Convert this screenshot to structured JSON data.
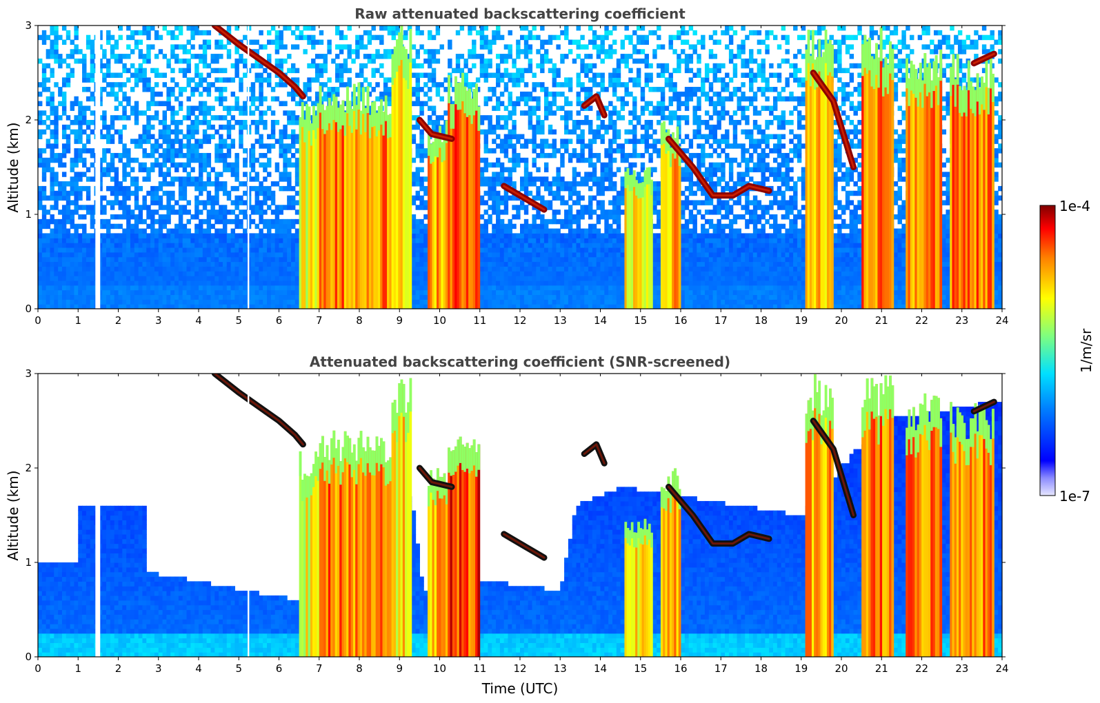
{
  "chart_data": [
    {
      "type": "heatmap",
      "title": "Raw attenuated backscattering coefficient",
      "xlabel": "",
      "ylabel": "Altitude (km)",
      "xlim": [
        0,
        24
      ],
      "ylim": [
        0,
        3
      ],
      "x_ticks": [
        "0",
        "1",
        "2",
        "3",
        "4",
        "5",
        "6",
        "7",
        "8",
        "9",
        "10",
        "11",
        "12",
        "13",
        "14",
        "15",
        "16",
        "17",
        "18",
        "19",
        "20",
        "21",
        "22",
        "23",
        "24"
      ],
      "y_ticks": [
        "0",
        "1",
        "2",
        "3"
      ],
      "grid": false,
      "colormap": "jet",
      "snr_screened": false,
      "cloud_layers": [
        {
          "x": [
            4.4,
            5.0,
            5.5,
            6.0,
            6.4,
            6.6
          ],
          "y": [
            3.0,
            2.8,
            2.65,
            2.5,
            2.35,
            2.25
          ]
        },
        {
          "x": [
            9.5,
            9.8,
            10.3
          ],
          "y": [
            2.0,
            1.85,
            1.8
          ]
        },
        {
          "x": [
            11.6,
            12.0,
            12.6
          ],
          "y": [
            1.3,
            1.2,
            1.05
          ]
        },
        {
          "x": [
            13.6,
            13.9,
            14.1
          ],
          "y": [
            2.15,
            2.25,
            2.05
          ]
        },
        {
          "x": [
            15.7,
            16.3,
            16.8,
            17.3,
            17.7,
            18.2
          ],
          "y": [
            1.8,
            1.5,
            1.2,
            1.2,
            1.3,
            1.25
          ]
        },
        {
          "x": [
            19.3,
            19.8,
            20.3
          ],
          "y": [
            2.5,
            2.2,
            1.5
          ]
        },
        {
          "x": [
            23.3,
            23.8
          ],
          "y": [
            2.6,
            2.7
          ]
        }
      ],
      "aerosol_columns": [
        {
          "x0": 6.5,
          "x1": 7.0,
          "top": 2.2,
          "level": 0.7
        },
        {
          "x0": 7.0,
          "x1": 8.8,
          "top": 2.4,
          "level": 0.85
        },
        {
          "x0": 8.8,
          "x1": 9.3,
          "top": 3.0,
          "level": 0.75
        },
        {
          "x0": 9.7,
          "x1": 10.2,
          "top": 2.0,
          "level": 0.8
        },
        {
          "x0": 10.2,
          "x1": 11.0,
          "top": 2.5,
          "level": 0.9
        },
        {
          "x0": 14.6,
          "x1": 15.3,
          "top": 1.5,
          "level": 0.75
        },
        {
          "x0": 15.5,
          "x1": 16.0,
          "top": 2.0,
          "level": 0.8
        },
        {
          "x0": 19.1,
          "x1": 19.8,
          "top": 3.0,
          "level": 0.8
        },
        {
          "x0": 20.5,
          "x1": 21.3,
          "top": 3.0,
          "level": 0.85
        },
        {
          "x0": 21.6,
          "x1": 22.5,
          "top": 2.8,
          "level": 0.85
        },
        {
          "x0": 22.7,
          "x1": 23.8,
          "top": 2.7,
          "level": 0.85
        }
      ],
      "gaps": [
        {
          "x0": 1.43,
          "x1": 1.55
        },
        {
          "x0": 5.22,
          "x1": 5.26
        }
      ]
    },
    {
      "type": "heatmap",
      "title": "Attenuated backscattering coefficient (SNR-screened)",
      "xlabel": "Time (UTC)",
      "ylabel": "Altitude (km)",
      "xlim": [
        0,
        24
      ],
      "ylim": [
        0,
        3
      ],
      "x_ticks": [
        "0",
        "1",
        "2",
        "3",
        "4",
        "5",
        "6",
        "7",
        "8",
        "9",
        "10",
        "11",
        "12",
        "13",
        "14",
        "15",
        "16",
        "17",
        "18",
        "19",
        "20",
        "21",
        "22",
        "23",
        "24"
      ],
      "y_ticks": [
        "0",
        "1",
        "2",
        "3"
      ],
      "grid": false,
      "colormap": "jet",
      "snr_screened": true,
      "cloud_layers": [
        {
          "x": [
            4.4,
            5.0,
            5.5,
            6.0,
            6.4,
            6.6
          ],
          "y": [
            3.0,
            2.8,
            2.65,
            2.5,
            2.35,
            2.25
          ]
        },
        {
          "x": [
            9.5,
            9.8,
            10.3
          ],
          "y": [
            2.0,
            1.85,
            1.8
          ]
        },
        {
          "x": [
            11.6,
            12.0,
            12.6
          ],
          "y": [
            1.3,
            1.2,
            1.05
          ]
        },
        {
          "x": [
            13.6,
            13.9,
            14.1
          ],
          "y": [
            2.15,
            2.25,
            2.05
          ]
        },
        {
          "x": [
            15.7,
            16.3,
            16.8,
            17.3,
            17.7,
            18.2
          ],
          "y": [
            1.8,
            1.5,
            1.2,
            1.2,
            1.3,
            1.25
          ]
        },
        {
          "x": [
            19.3,
            19.8,
            20.3
          ],
          "y": [
            2.5,
            2.2,
            1.5
          ]
        },
        {
          "x": [
            23.3,
            23.8
          ],
          "y": [
            2.6,
            2.7
          ]
        }
      ],
      "aerosol_columns": [
        {
          "x0": 6.5,
          "x1": 7.0,
          "top": 2.2,
          "level": 0.7
        },
        {
          "x0": 7.0,
          "x1": 8.8,
          "top": 2.4,
          "level": 0.85
        },
        {
          "x0": 8.8,
          "x1": 9.3,
          "top": 3.0,
          "level": 0.75
        },
        {
          "x0": 9.7,
          "x1": 10.2,
          "top": 2.0,
          "level": 0.8
        },
        {
          "x0": 10.2,
          "x1": 11.0,
          "top": 2.5,
          "level": 0.9
        },
        {
          "x0": 14.6,
          "x1": 15.3,
          "top": 1.5,
          "level": 0.75
        },
        {
          "x0": 15.5,
          "x1": 16.0,
          "top": 2.0,
          "level": 0.8
        },
        {
          "x0": 19.1,
          "x1": 19.8,
          "top": 3.0,
          "level": 0.8
        },
        {
          "x0": 20.5,
          "x1": 21.3,
          "top": 3.0,
          "level": 0.85
        },
        {
          "x0": 21.6,
          "x1": 22.5,
          "top": 2.8,
          "level": 0.85
        },
        {
          "x0": 22.7,
          "x1": 23.8,
          "top": 2.7,
          "level": 0.85
        }
      ],
      "screened_boundary": {
        "x": [
          0,
          1.0,
          1.0,
          2.7,
          2.7,
          6.5,
          9.3,
          9.6,
          11.3,
          13.0,
          13.4,
          14.5,
          19.0,
          21.0,
          23.8
        ],
        "y": [
          1.0,
          1.0,
          1.6,
          1.6,
          0.9,
          0.6,
          1.7,
          0.7,
          0.8,
          0.7,
          1.6,
          1.8,
          1.5,
          2.5,
          2.7
        ]
      },
      "gaps": [
        {
          "x0": 1.43,
          "x1": 1.55
        },
        {
          "x0": 5.22,
          "x1": 5.26
        }
      ]
    }
  ],
  "colorbar": {
    "label": "1/m/sr",
    "max_label": "1e-4",
    "min_label": "1e-7",
    "range": [
      1e-07,
      0.0001
    ],
    "scale": "log"
  }
}
